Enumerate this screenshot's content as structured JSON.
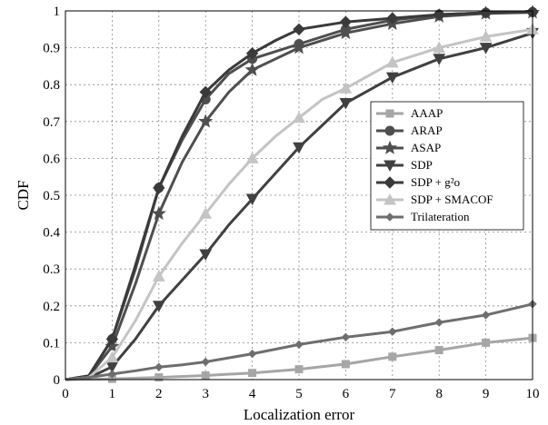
{
  "chart_data": {
    "type": "line",
    "xlabel": "Localization error",
    "ylabel": "CDF",
    "xlim": [
      0,
      10
    ],
    "ylim": [
      0,
      1
    ],
    "x_ticks": [
      "0",
      "1",
      "2",
      "3",
      "4",
      "5",
      "6",
      "7",
      "8",
      "9",
      "10"
    ],
    "y_ticks": [
      "0",
      "0.1",
      "0.2",
      "0.3",
      "0.4",
      "0.5",
      "0.6",
      "0.7",
      "0.8",
      "0.9",
      "1"
    ],
    "grid": true,
    "legend_position": "right",
    "series": [
      {
        "name": "AAAP",
        "color": "#a6a6a6",
        "marker": "square",
        "points": [
          [
            0,
            0
          ],
          [
            1,
            0.002
          ],
          [
            2,
            0.006
          ],
          [
            3,
            0.011
          ],
          [
            4,
            0.018
          ],
          [
            5,
            0.028
          ],
          [
            6,
            0.042
          ],
          [
            7,
            0.062
          ],
          [
            8,
            0.08
          ],
          [
            9,
            0.1
          ],
          [
            10,
            0.113
          ]
        ]
      },
      {
        "name": "ARAP",
        "color": "#4f4f4f",
        "marker": "circle",
        "points": [
          [
            0,
            0
          ],
          [
            0.5,
            0.01
          ],
          [
            1,
            0.11
          ],
          [
            1.5,
            0.3
          ],
          [
            2,
            0.52
          ],
          [
            2.5,
            0.65
          ],
          [
            3,
            0.76
          ],
          [
            3.5,
            0.83
          ],
          [
            4,
            0.87
          ],
          [
            4.5,
            0.89
          ],
          [
            5,
            0.91
          ],
          [
            6,
            0.95
          ],
          [
            7,
            0.975
          ],
          [
            8,
            0.99
          ],
          [
            9,
            0.995
          ],
          [
            10,
            0.997
          ]
        ]
      },
      {
        "name": "ASAP",
        "color": "#4f4f4f",
        "marker": "star",
        "points": [
          [
            0,
            0
          ],
          [
            0.5,
            0.008
          ],
          [
            1,
            0.09
          ],
          [
            1.5,
            0.26
          ],
          [
            2,
            0.45
          ],
          [
            2.5,
            0.59
          ],
          [
            3,
            0.7
          ],
          [
            3.5,
            0.78
          ],
          [
            4,
            0.84
          ],
          [
            4.5,
            0.87
          ],
          [
            5,
            0.9
          ],
          [
            6,
            0.94
          ],
          [
            7,
            0.965
          ],
          [
            8,
            0.985
          ],
          [
            9,
            0.993
          ],
          [
            10,
            0.996
          ]
        ]
      },
      {
        "name": "SDP",
        "color": "#404040",
        "marker": "triangle-down",
        "points": [
          [
            0,
            0
          ],
          [
            0.5,
            0.005
          ],
          [
            1,
            0.035
          ],
          [
            1.5,
            0.11
          ],
          [
            2,
            0.2
          ],
          [
            2.5,
            0.27
          ],
          [
            3,
            0.34
          ],
          [
            3.5,
            0.42
          ],
          [
            4,
            0.49
          ],
          [
            4.5,
            0.56
          ],
          [
            5,
            0.63
          ],
          [
            5.5,
            0.69
          ],
          [
            6,
            0.75
          ],
          [
            7,
            0.82
          ],
          [
            8,
            0.87
          ],
          [
            9,
            0.9
          ],
          [
            10,
            0.94
          ]
        ]
      },
      {
        "name": "SDP + g²o",
        "color": "#3a3a3a",
        "marker": "diamond",
        "points": [
          [
            0,
            0
          ],
          [
            0.5,
            0.01
          ],
          [
            1,
            0.11
          ],
          [
            1.5,
            0.31
          ],
          [
            2,
            0.52
          ],
          [
            2.5,
            0.66
          ],
          [
            3,
            0.78
          ],
          [
            3.5,
            0.84
          ],
          [
            4,
            0.885
          ],
          [
            4.5,
            0.92
          ],
          [
            5,
            0.95
          ],
          [
            6,
            0.97
          ],
          [
            7,
            0.98
          ],
          [
            8,
            0.99
          ],
          [
            9,
            0.995
          ],
          [
            10,
            0.997
          ]
        ]
      },
      {
        "name": "SDP + SMACOF",
        "color": "#c4c4c4",
        "marker": "triangle-up",
        "points": [
          [
            0,
            0
          ],
          [
            0.5,
            0.006
          ],
          [
            1,
            0.06
          ],
          [
            1.5,
            0.16
          ],
          [
            2,
            0.28
          ],
          [
            2.5,
            0.37
          ],
          [
            3,
            0.45
          ],
          [
            3.5,
            0.53
          ],
          [
            4,
            0.6
          ],
          [
            4.5,
            0.66
          ],
          [
            5,
            0.71
          ],
          [
            5.5,
            0.76
          ],
          [
            6,
            0.79
          ],
          [
            7,
            0.86
          ],
          [
            8,
            0.9
          ],
          [
            9,
            0.93
          ],
          [
            10,
            0.95
          ]
        ]
      },
      {
        "name": "Trilateration",
        "color": "#6e6e6e",
        "marker": "small-diamond",
        "points": [
          [
            0,
            0
          ],
          [
            0.5,
            0.006
          ],
          [
            1,
            0.015
          ],
          [
            1.5,
            0.024
          ],
          [
            2,
            0.034
          ],
          [
            2.5,
            0.04
          ],
          [
            3,
            0.048
          ],
          [
            4,
            0.07
          ],
          [
            5,
            0.095
          ],
          [
            6,
            0.115
          ],
          [
            7,
            0.13
          ],
          [
            8,
            0.155
          ],
          [
            9,
            0.175
          ],
          [
            10,
            0.205
          ]
        ]
      }
    ]
  }
}
